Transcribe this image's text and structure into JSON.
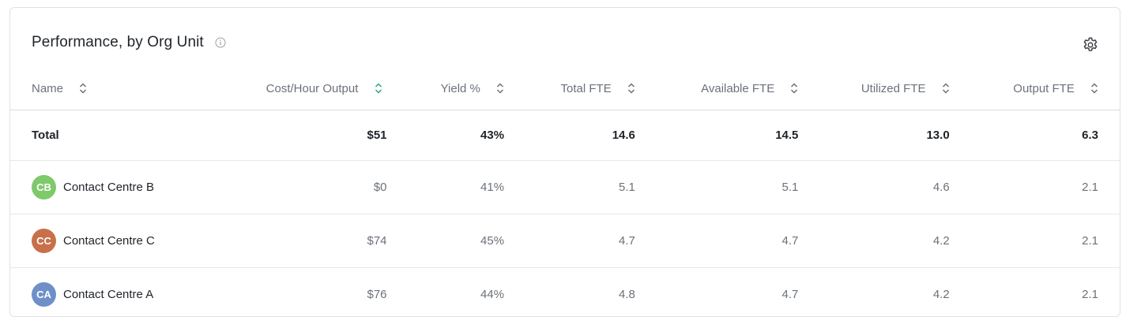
{
  "panel": {
    "title": "Performance, by Org Unit",
    "info_icon": "info-circle-icon",
    "settings_icon": "gear-icon"
  },
  "table": {
    "columns": [
      {
        "label": "Name",
        "sort_icon": "sort-unsorted-icon"
      },
      {
        "label": "Cost/Hour Output",
        "sort_icon": "sort-active-icon",
        "sort_color": "#2fa37a"
      },
      {
        "label": "Yield %",
        "sort_icon": "sort-unsorted-icon"
      },
      {
        "label": "Total FTE",
        "sort_icon": "sort-unsorted-icon"
      },
      {
        "label": "Available FTE",
        "sort_icon": "sort-unsorted-icon"
      },
      {
        "label": "Utilized FTE",
        "sort_icon": "sort-unsorted-icon"
      },
      {
        "label": "Output FTE",
        "sort_icon": "sort-unsorted-icon"
      }
    ],
    "total": {
      "name": "Total",
      "cost_hour_output": "$51",
      "yield": "43%",
      "total_fte": "14.6",
      "available_fte": "14.5",
      "utilized_fte": "13.0",
      "output_fte": "6.3"
    },
    "rows": [
      {
        "initials": "CB",
        "avatar_color": "#7ec96b",
        "name": "Contact Centre B",
        "cost_hour_output": "$0",
        "yield": "41%",
        "total_fte": "5.1",
        "available_fte": "5.1",
        "utilized_fte": "4.6",
        "output_fte": "2.1"
      },
      {
        "initials": "CC",
        "avatar_color": "#c8704a",
        "name": "Contact Centre C",
        "cost_hour_output": "$74",
        "yield": "45%",
        "total_fte": "4.7",
        "available_fte": "4.7",
        "utilized_fte": "4.2",
        "output_fte": "2.1"
      },
      {
        "initials": "CA",
        "avatar_color": "#6f8fc8",
        "name": "Contact Centre A",
        "cost_hour_output": "$76",
        "yield": "44%",
        "total_fte": "4.8",
        "available_fte": "4.7",
        "utilized_fte": "4.2",
        "output_fte": "2.1"
      }
    ]
  }
}
